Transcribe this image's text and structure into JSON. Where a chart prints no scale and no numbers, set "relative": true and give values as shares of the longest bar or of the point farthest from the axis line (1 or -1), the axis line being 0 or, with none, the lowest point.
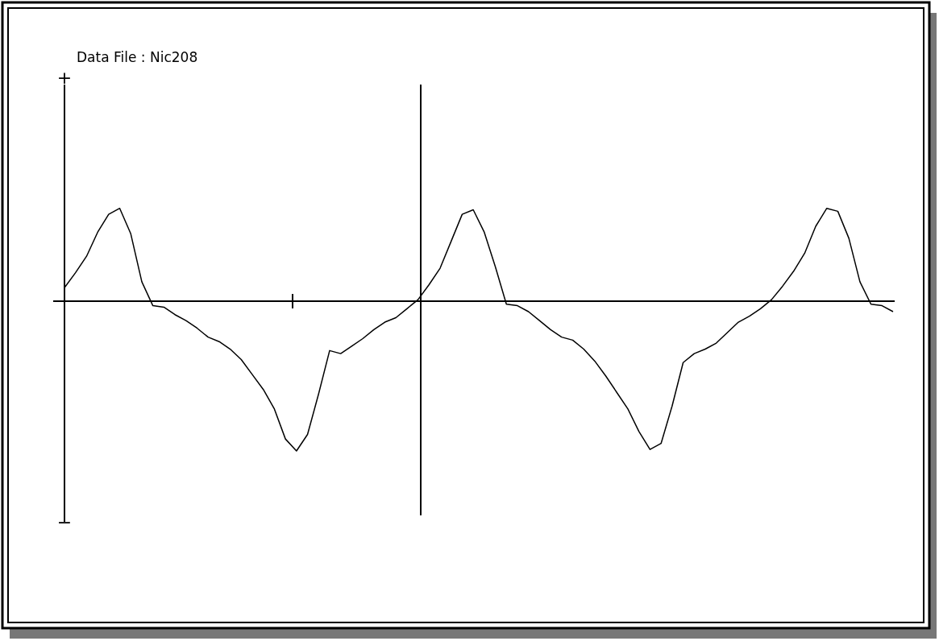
{
  "chart_data": {
    "type": "line",
    "title": "Data File :  Nic208",
    "relative": true,
    "annotations": [
      "+",
      "−"
    ],
    "categories": [
      null,
      null,
      null,
      null,
      null,
      null,
      null,
      null,
      null,
      null,
      null,
      null,
      null,
      null,
      null,
      null,
      null,
      null,
      null,
      null,
      null,
      null,
      null,
      null,
      null,
      null,
      null,
      null,
      null,
      null,
      null,
      null,
      null,
      null,
      null,
      null,
      null,
      null,
      null,
      null,
      null,
      null,
      null,
      null,
      null,
      null,
      null,
      null,
      null,
      null,
      null,
      null,
      null,
      null,
      null,
      null,
      null,
      null,
      null,
      null,
      null,
      null,
      null,
      null,
      null,
      null,
      null,
      null,
      null,
      null,
      null,
      null,
      null,
      null,
      null,
      null
    ],
    "series": [
      {
        "color": "#000000",
        "values": [
          0.09,
          0.19,
          0.3,
          0.46,
          0.58,
          0.62,
          0.45,
          0.13,
          -0.03,
          -0.04,
          -0.09,
          -0.13,
          -0.18,
          -0.24,
          -0.27,
          -0.32,
          -0.39,
          -0.49,
          -0.59,
          -0.72,
          -0.92,
          -1,
          -0.89,
          -0.62,
          -0.33,
          -0.35,
          -0.3,
          -0.25,
          -0.19,
          -0.14,
          -0.11,
          -0.05,
          0.01,
          0.11,
          0.22,
          0.4,
          0.58,
          0.61,
          0.46,
          0.23,
          -0.02,
          -0.03,
          -0.07,
          -0.13,
          -0.19,
          -0.24,
          -0.26,
          -0.32,
          -0.4,
          -0.5,
          -0.61,
          -0.72,
          -0.87,
          -0.99,
          -0.95,
          -0.7,
          -0.41,
          -0.35,
          -0.32,
          -0.28,
          -0.21,
          -0.14,
          -0.1,
          -0.05,
          0.01,
          0.1,
          0.2,
          0.32,
          0.5,
          0.62,
          0.6,
          0.42,
          0.13,
          -0.02,
          -0.03,
          -0.07
        ]
      }
    ]
  }
}
